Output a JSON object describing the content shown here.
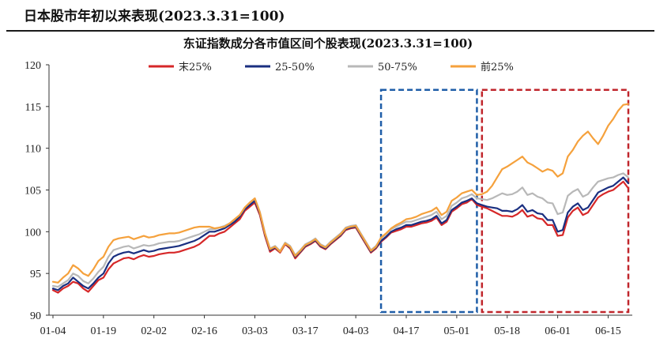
{
  "page": {
    "title": "日本股市年初以来表现(2023.3.31=100)"
  },
  "chart_data": {
    "type": "line",
    "title": "东证指数成分各市值区间个股表现(2023.3.31=100)",
    "xlabel": "",
    "ylabel": "",
    "ylim": [
      90,
      120
    ],
    "yticks": [
      90,
      95,
      100,
      105,
      110,
      115,
      120
    ],
    "xtick_labels": [
      "01-04",
      "01-19",
      "02-02",
      "02-16",
      "03-03",
      "03-17",
      "04-03",
      "04-17",
      "05-01",
      "05-18",
      "06-01",
      "06-15"
    ],
    "xtick_indices": [
      0,
      10,
      20,
      30,
      40,
      50,
      60,
      70,
      80,
      90,
      100,
      110
    ],
    "n_points": 115,
    "legend": {
      "placement": "top-center"
    },
    "grid": false,
    "highlight_boxes": [
      {
        "x_from": 65,
        "x_to": 84,
        "y_from": 90,
        "y_to": 117,
        "color": "#1f5ea8",
        "style": "dashed"
      },
      {
        "x_from": 85,
        "x_to": 114,
        "y_from": 90,
        "y_to": 117,
        "color": "#c0262c",
        "style": "dashed"
      }
    ],
    "series": [
      {
        "name": "末25%",
        "color": "#d62728",
        "values": [
          93.0,
          92.7,
          93.2,
          93.5,
          94.0,
          93.8,
          93.2,
          92.8,
          93.5,
          94.2,
          94.5,
          95.5,
          96.2,
          96.5,
          96.8,
          96.9,
          96.7,
          97.0,
          97.2,
          97.0,
          97.1,
          97.3,
          97.4,
          97.5,
          97.5,
          97.6,
          97.8,
          98.0,
          98.2,
          98.5,
          99.0,
          99.5,
          99.5,
          99.8,
          100.0,
          100.5,
          101.0,
          101.5,
          102.5,
          103.0,
          103.5,
          102.0,
          99.5,
          97.6,
          98.0,
          97.5,
          98.5,
          98.0,
          96.8,
          97.5,
          98.2,
          98.5,
          98.9,
          98.2,
          97.9,
          98.5,
          99.0,
          99.5,
          100.2,
          100.4,
          100.5,
          99.5,
          98.5,
          97.5,
          98.0,
          98.8,
          99.3,
          99.9,
          100.1,
          100.3,
          100.6,
          100.6,
          100.8,
          101.0,
          101.1,
          101.3,
          101.7,
          100.8,
          101.2,
          102.4,
          102.8,
          103.3,
          103.5,
          103.9,
          103.2,
          103.0,
          102.8,
          102.5,
          102.2,
          101.9,
          101.9,
          101.8,
          102.1,
          102.6,
          101.8,
          102.0,
          101.6,
          101.5,
          100.8,
          100.8,
          99.5,
          99.6,
          101.7,
          102.5,
          102.9,
          102.0,
          102.3,
          103.2,
          104.1,
          104.5,
          104.8,
          105.0,
          105.5,
          106.0,
          105.2
        ]
      },
      {
        "name": "25-50%",
        "color": "#1a2f80",
        "values": [
          93.2,
          93.0,
          93.5,
          93.8,
          94.5,
          94.0,
          93.5,
          93.2,
          93.8,
          94.5,
          95.0,
          96.2,
          97.0,
          97.3,
          97.5,
          97.6,
          97.4,
          97.6,
          97.8,
          97.6,
          97.7,
          97.9,
          98.0,
          98.1,
          98.2,
          98.3,
          98.5,
          98.7,
          98.9,
          99.2,
          99.6,
          100.0,
          100.0,
          100.2,
          100.4,
          100.8,
          101.2,
          101.8,
          102.7,
          103.2,
          103.7,
          102.2,
          99.7,
          97.8,
          98.1,
          97.6,
          98.6,
          98.1,
          97.0,
          97.6,
          98.3,
          98.6,
          99.0,
          98.3,
          98.0,
          98.6,
          99.1,
          99.6,
          100.3,
          100.5,
          100.6,
          99.6,
          98.6,
          97.6,
          98.1,
          98.9,
          99.4,
          100.0,
          100.3,
          100.5,
          100.8,
          100.8,
          101.0,
          101.2,
          101.3,
          101.5,
          101.9,
          101.0,
          101.4,
          102.6,
          103.0,
          103.5,
          103.7,
          104.0,
          103.4,
          103.2,
          103.0,
          102.9,
          102.8,
          102.5,
          102.5,
          102.4,
          102.7,
          103.2,
          102.4,
          102.6,
          102.2,
          102.1,
          101.4,
          101.4,
          100.0,
          100.2,
          102.3,
          103.0,
          103.4,
          102.6,
          102.9,
          103.8,
          104.7,
          105.0,
          105.3,
          105.5,
          106.0,
          106.5,
          105.8
        ]
      },
      {
        "name": "50-75%",
        "color": "#b8b8b8",
        "values": [
          93.5,
          93.4,
          93.8,
          94.2,
          95.0,
          94.7,
          94.1,
          93.8,
          94.4,
          95.2,
          95.8,
          97.0,
          97.8,
          98.0,
          98.2,
          98.3,
          98.0,
          98.2,
          98.4,
          98.3,
          98.4,
          98.6,
          98.7,
          98.8,
          98.8,
          98.9,
          99.1,
          99.3,
          99.5,
          99.7,
          100.0,
          100.3,
          100.3,
          100.5,
          100.7,
          101.0,
          101.5,
          102.0,
          102.9,
          103.5,
          104.0,
          102.4,
          99.9,
          98.0,
          98.3,
          97.7,
          98.7,
          98.3,
          97.2,
          97.8,
          98.5,
          98.8,
          99.2,
          98.5,
          98.2,
          98.8,
          99.3,
          99.8,
          100.5,
          100.7,
          100.8,
          99.8,
          98.8,
          97.8,
          98.3,
          99.2,
          99.7,
          100.3,
          100.6,
          100.9,
          101.2,
          101.2,
          101.4,
          101.6,
          101.8,
          102.0,
          102.4,
          101.5,
          101.9,
          103.1,
          103.5,
          104.0,
          104.2,
          104.5,
          104.0,
          103.9,
          103.8,
          104.0,
          104.3,
          104.6,
          104.4,
          104.5,
          104.8,
          105.3,
          104.4,
          104.6,
          104.2,
          104.0,
          103.5,
          103.4,
          102.1,
          102.3,
          104.3,
          104.8,
          105.1,
          104.2,
          104.5,
          105.3,
          106.0,
          106.2,
          106.4,
          106.5,
          106.8,
          107.0,
          106.5
        ]
      },
      {
        "name": "前25%",
        "color": "#f5a13c",
        "values": [
          94.0,
          93.9,
          94.5,
          95.0,
          96.0,
          95.6,
          95.0,
          94.7,
          95.5,
          96.5,
          97.0,
          98.2,
          99.0,
          99.2,
          99.3,
          99.4,
          99.1,
          99.3,
          99.5,
          99.3,
          99.4,
          99.6,
          99.7,
          99.8,
          99.8,
          99.9,
          100.1,
          100.3,
          100.5,
          100.6,
          100.6,
          100.6,
          100.4,
          100.5,
          100.6,
          101.0,
          101.5,
          102.0,
          102.9,
          103.5,
          104.0,
          102.3,
          99.8,
          97.9,
          98.2,
          97.6,
          98.6,
          98.2,
          97.1,
          97.7,
          98.4,
          98.7,
          99.1,
          98.4,
          98.1,
          98.7,
          99.2,
          99.7,
          100.4,
          100.6,
          100.7,
          99.7,
          98.7,
          97.7,
          98.2,
          99.3,
          99.8,
          100.4,
          100.8,
          101.1,
          101.5,
          101.6,
          101.8,
          102.1,
          102.3,
          102.5,
          102.9,
          102.0,
          102.4,
          103.7,
          104.1,
          104.6,
          104.8,
          105.0,
          104.4,
          104.5,
          104.8,
          105.5,
          106.5,
          107.5,
          107.8,
          108.2,
          108.6,
          109.0,
          108.3,
          108.0,
          107.6,
          107.2,
          107.5,
          107.3,
          106.6,
          107.0,
          109.0,
          109.8,
          110.8,
          111.5,
          112.0,
          111.2,
          110.5,
          111.5,
          112.7,
          113.5,
          114.5,
          115.2,
          115.3
        ]
      }
    ]
  }
}
